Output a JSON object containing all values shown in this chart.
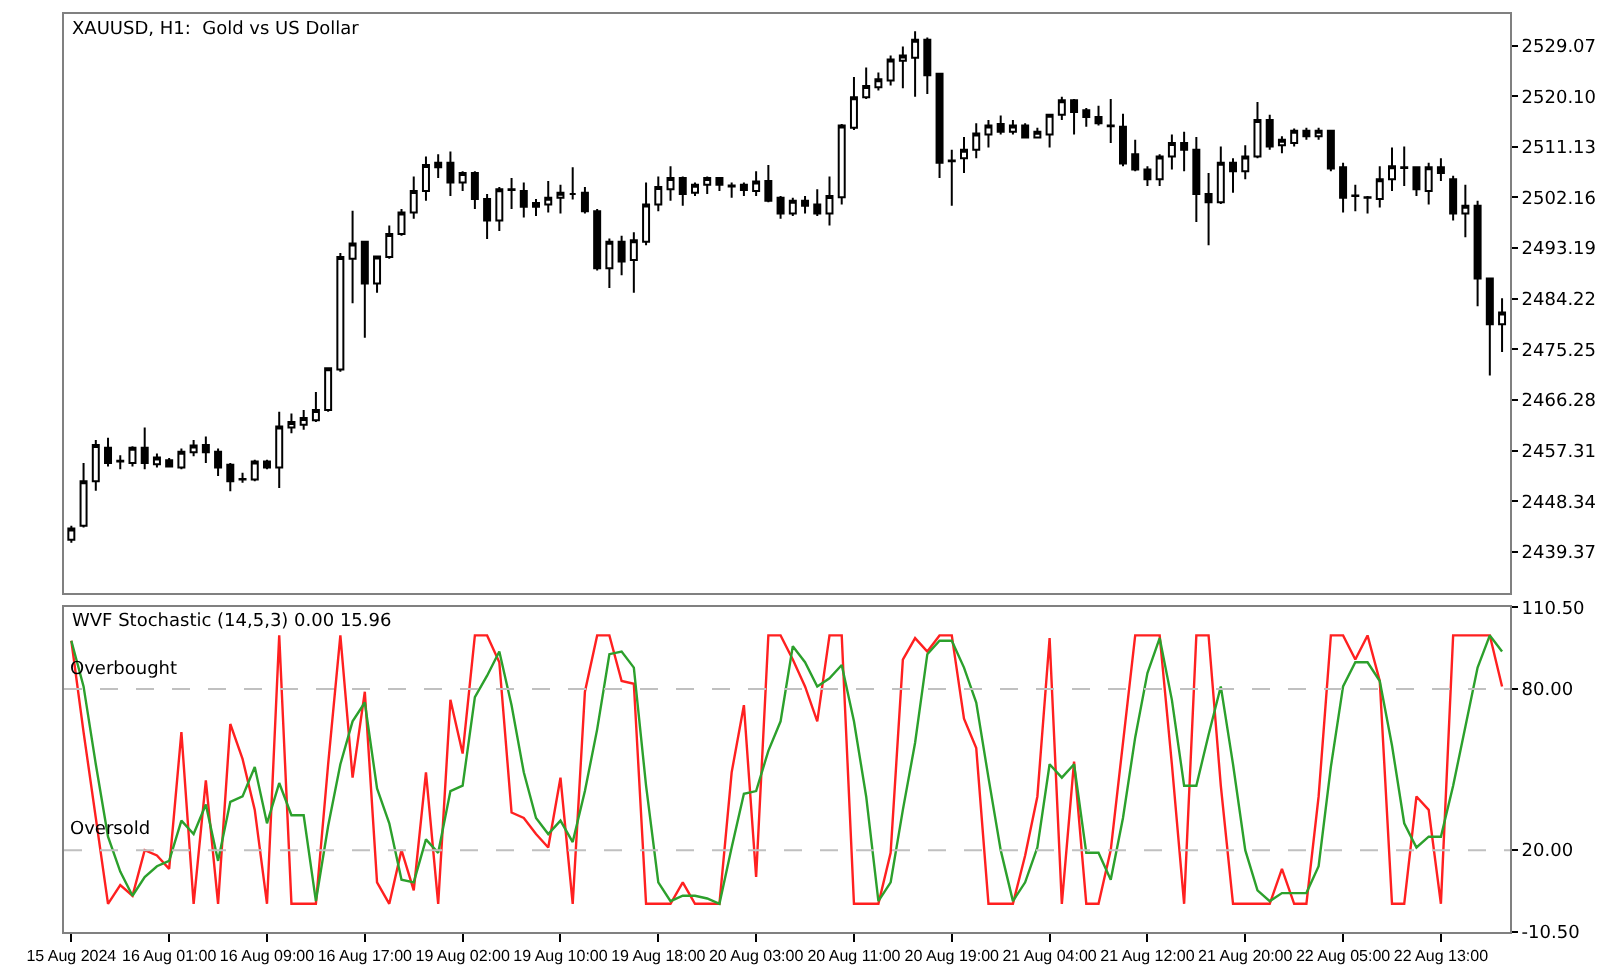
{
  "chart_data": [
    {
      "type": "candlestick",
      "title": "XAUUSD, H1:  Gold vs US Dollar",
      "ohlc": [
        [
          2441.5,
          2444.0,
          2441.0,
          2443.5
        ],
        [
          2444.0,
          2455.1,
          2443.7,
          2451.9
        ],
        [
          2451.9,
          2459.2,
          2450.2,
          2458.3
        ],
        [
          2457.8,
          2459.6,
          2454.5,
          2455.1
        ],
        [
          2455.4,
          2456.5,
          2454.0,
          2455.5
        ],
        [
          2455.1,
          2458.1,
          2454.5,
          2457.8
        ],
        [
          2457.8,
          2461.4,
          2454.0,
          2455.1
        ],
        [
          2454.9,
          2456.8,
          2454.3,
          2456.1
        ],
        [
          2455.6,
          2456.0,
          2454.3,
          2454.5
        ],
        [
          2454.3,
          2457.7,
          2454.0,
          2457.1
        ],
        [
          2457.0,
          2459.2,
          2456.3,
          2458.2
        ],
        [
          2458.3,
          2459.8,
          2455.1,
          2457.0
        ],
        [
          2457.1,
          2457.7,
          2452.8,
          2454.3
        ],
        [
          2454.8,
          2455.1,
          2450.1,
          2451.9
        ],
        [
          2452.2,
          2453.4,
          2451.6,
          2452.3
        ],
        [
          2452.2,
          2455.7,
          2451.9,
          2455.4
        ],
        [
          2455.4,
          2455.7,
          2454.0,
          2454.3
        ],
        [
          2454.3,
          2464.2,
          2450.7,
          2461.6
        ],
        [
          2461.4,
          2463.9,
          2460.4,
          2462.4
        ],
        [
          2461.9,
          2464.5,
          2461.0,
          2463.1
        ],
        [
          2462.7,
          2467.7,
          2462.4,
          2464.5
        ],
        [
          2464.5,
          2472.0,
          2464.2,
          2471.9
        ],
        [
          2471.7,
          2492.3,
          2471.3,
          2491.6
        ],
        [
          2491.3,
          2499.8,
          2483.4,
          2494.0
        ],
        [
          2494.3,
          2494.3,
          2477.3,
          2486.9
        ],
        [
          2486.9,
          2491.9,
          2485.3,
          2491.7
        ],
        [
          2491.6,
          2497.2,
          2491.3,
          2495.7
        ],
        [
          2495.7,
          2500.1,
          2495.4,
          2499.5
        ],
        [
          2499.5,
          2505.9,
          2498.4,
          2503.3
        ],
        [
          2503.3,
          2509.4,
          2501.6,
          2507.9
        ],
        [
          2508.3,
          2509.8,
          2505.6,
          2507.5
        ],
        [
          2508.3,
          2510.3,
          2502.4,
          2504.8
        ],
        [
          2504.8,
          2506.8,
          2503.3,
          2506.5
        ],
        [
          2506.5,
          2506.8,
          2500.1,
          2501.9
        ],
        [
          2501.9,
          2502.8,
          2494.8,
          2498.1
        ],
        [
          2498.1,
          2504.0,
          2496.2,
          2503.6
        ],
        [
          2503.5,
          2505.6,
          2500.1,
          2503.6
        ],
        [
          2503.3,
          2504.8,
          2498.6,
          2500.5
        ],
        [
          2500.5,
          2501.9,
          2498.9,
          2501.2
        ],
        [
          2500.9,
          2505.1,
          2499.5,
          2502.1
        ],
        [
          2502.1,
          2504.4,
          2499.3,
          2503.0
        ],
        [
          2502.8,
          2507.5,
          2501.8,
          2502.8
        ],
        [
          2503.0,
          2504.0,
          2499.3,
          2499.7
        ],
        [
          2499.7,
          2500.1,
          2489.2,
          2489.6
        ],
        [
          2489.6,
          2494.9,
          2486.1,
          2494.3
        ],
        [
          2494.3,
          2495.4,
          2488.4,
          2490.8
        ],
        [
          2491.1,
          2496.0,
          2485.3,
          2494.6
        ],
        [
          2494.3,
          2504.8,
          2493.7,
          2500.9
        ],
        [
          2500.9,
          2505.9,
          2499.7,
          2504.0
        ],
        [
          2503.6,
          2507.7,
          2501.6,
          2505.6
        ],
        [
          2505.6,
          2505.9,
          2500.7,
          2502.8
        ],
        [
          2503.0,
          2504.8,
          2502.4,
          2504.4
        ],
        [
          2504.4,
          2505.9,
          2502.8,
          2505.6
        ],
        [
          2505.6,
          2505.6,
          2503.3,
          2504.4
        ],
        [
          2504.3,
          2504.8,
          2502.1,
          2504.1
        ],
        [
          2504.4,
          2504.8,
          2502.4,
          2503.5
        ],
        [
          2503.3,
          2506.8,
          2502.4,
          2505.0
        ],
        [
          2505.1,
          2507.9,
          2501.3,
          2501.6
        ],
        [
          2502.1,
          2502.4,
          2498.4,
          2499.3
        ],
        [
          2499.3,
          2502.1,
          2498.9,
          2501.6
        ],
        [
          2501.6,
          2502.4,
          2499.3,
          2500.7
        ],
        [
          2500.9,
          2503.6,
          2498.9,
          2499.3
        ],
        [
          2499.3,
          2505.9,
          2497.2,
          2502.4
        ],
        [
          2502.2,
          2515.2,
          2500.9,
          2514.9
        ],
        [
          2514.5,
          2523.5,
          2514.1,
          2519.9
        ],
        [
          2519.9,
          2525.2,
          2519.6,
          2521.9
        ],
        [
          2521.7,
          2524.3,
          2521.1,
          2523.1
        ],
        [
          2522.9,
          2527.3,
          2522.0,
          2526.6
        ],
        [
          2526.4,
          2528.9,
          2521.5,
          2527.3
        ],
        [
          2526.9,
          2531.6,
          2520.0,
          2530.1
        ],
        [
          2530.1,
          2530.5,
          2520.5,
          2523.8
        ],
        [
          2524.1,
          2524.1,
          2505.6,
          2508.3
        ],
        [
          2508.6,
          2510.6,
          2500.7,
          2508.7
        ],
        [
          2509.1,
          2512.9,
          2506.5,
          2510.6
        ],
        [
          2510.6,
          2515.3,
          2509.1,
          2513.5
        ],
        [
          2513.3,
          2515.9,
          2511.0,
          2514.9
        ],
        [
          2515.2,
          2516.7,
          2513.3,
          2513.8
        ],
        [
          2513.8,
          2515.9,
          2513.3,
          2514.9
        ],
        [
          2514.9,
          2515.3,
          2512.6,
          2512.8
        ],
        [
          2512.8,
          2514.5,
          2512.6,
          2513.8
        ],
        [
          2513.3,
          2517.0,
          2511.0,
          2516.8
        ],
        [
          2516.8,
          2520.0,
          2515.9,
          2519.4
        ],
        [
          2519.4,
          2519.6,
          2513.3,
          2517.3
        ],
        [
          2517.6,
          2518.0,
          2514.7,
          2516.4
        ],
        [
          2516.4,
          2518.4,
          2514.9,
          2515.3
        ],
        [
          2514.9,
          2519.6,
          2511.8,
          2514.8
        ],
        [
          2514.7,
          2517.0,
          2507.7,
          2508.2
        ],
        [
          2509.8,
          2512.4,
          2506.8,
          2507.1
        ],
        [
          2507.1,
          2507.7,
          2504.2,
          2505.4
        ],
        [
          2505.4,
          2509.8,
          2504.2,
          2509.4
        ],
        [
          2509.4,
          2513.3,
          2507.1,
          2511.8
        ],
        [
          2511.8,
          2513.8,
          2506.8,
          2510.6
        ],
        [
          2510.6,
          2512.9,
          2497.8,
          2502.8
        ],
        [
          2502.8,
          2506.5,
          2493.7,
          2501.3
        ],
        [
          2501.3,
          2511.2,
          2501.0,
          2508.3
        ],
        [
          2508.3,
          2509.1,
          2503.0,
          2506.8
        ],
        [
          2506.8,
          2511.4,
          2505.4,
          2509.4
        ],
        [
          2509.4,
          2519.1,
          2509.1,
          2515.9
        ],
        [
          2515.9,
          2516.8,
          2510.6,
          2511.2
        ],
        [
          2511.4,
          2513.0,
          2510.0,
          2512.4
        ],
        [
          2511.8,
          2514.4,
          2511.2,
          2514.0
        ],
        [
          2514.0,
          2514.5,
          2512.4,
          2513.0
        ],
        [
          2513.0,
          2514.5,
          2512.4,
          2514.0
        ],
        [
          2514.0,
          2514.1,
          2506.8,
          2507.3
        ],
        [
          2507.5,
          2508.3,
          2499.5,
          2502.1
        ],
        [
          2502.4,
          2504.4,
          2499.7,
          2502.5
        ],
        [
          2502.2,
          2502.4,
          2499.3,
          2502.1
        ],
        [
          2501.9,
          2507.7,
          2500.4,
          2505.4
        ],
        [
          2505.4,
          2511.0,
          2503.3,
          2507.7
        ],
        [
          2507.5,
          2511.2,
          2504.2,
          2507.4
        ],
        [
          2507.5,
          2507.7,
          2502.4,
          2503.6
        ],
        [
          2503.3,
          2508.3,
          2500.9,
          2507.5
        ],
        [
          2507.5,
          2509.1,
          2505.1,
          2506.5
        ],
        [
          2505.4,
          2506.0,
          2498.1,
          2499.3
        ],
        [
          2499.3,
          2504.4,
          2495.1,
          2500.7
        ],
        [
          2500.7,
          2501.6,
          2482.9,
          2487.8
        ],
        [
          2487.8,
          2487.8,
          2470.6,
          2479.7
        ],
        [
          2479.7,
          2484.3,
          2474.8,
          2481.8
        ]
      ],
      "ylim": [
        2432.0,
        2534.7
      ],
      "yticks": [
        {
          "value": 2529.07,
          "label": "2529.07"
        },
        {
          "value": 2520.1,
          "label": "2520.10"
        },
        {
          "value": 2511.13,
          "label": "2511.13"
        },
        {
          "value": 2502.16,
          "label": "2502.16"
        },
        {
          "value": 2493.19,
          "label": "2493.19"
        },
        {
          "value": 2484.22,
          "label": "2484.22"
        },
        {
          "value": 2475.25,
          "label": "2475.25"
        },
        {
          "value": 2466.28,
          "label": "2466.28"
        },
        {
          "value": 2457.31,
          "label": "2457.31"
        },
        {
          "value": 2448.34,
          "label": "2448.34"
        },
        {
          "value": 2439.37,
          "label": "2439.37"
        }
      ],
      "tick_labels": "y"
    },
    {
      "type": "line",
      "title": "WVF Stochastic (14,5,3) 0.00 15.96",
      "categories": [
        "15 Aug 2024",
        null,
        null,
        null,
        null,
        null,
        null,
        null,
        "16 Aug 01:00",
        null,
        null,
        null,
        null,
        null,
        null,
        null,
        "16 Aug 09:00",
        null,
        null,
        null,
        null,
        null,
        null,
        null,
        "16 Aug 17:00",
        null,
        null,
        null,
        null,
        null,
        null,
        null,
        "19 Aug 02:00",
        null,
        null,
        null,
        null,
        null,
        null,
        null,
        "19 Aug 10:00",
        null,
        null,
        null,
        null,
        null,
        null,
        null,
        "19 Aug 18:00",
        null,
        null,
        null,
        null,
        null,
        null,
        null,
        "20 Aug 03:00",
        null,
        null,
        null,
        null,
        null,
        null,
        null,
        "20 Aug 11:00",
        null,
        null,
        null,
        null,
        null,
        null,
        null,
        "20 Aug 19:00",
        null,
        null,
        null,
        null,
        null,
        null,
        null,
        "21 Aug 04:00",
        null,
        null,
        null,
        null,
        null,
        null,
        null,
        "21 Aug 12:00",
        null,
        null,
        null,
        null,
        null,
        null,
        null,
        "21 Aug 20:00",
        null,
        null,
        null,
        null,
        null,
        null,
        null,
        "22 Aug 05:00",
        null,
        null,
        null,
        null,
        null,
        null,
        null,
        "22 Aug 13:00",
        null,
        null,
        null,
        null,
        null
      ],
      "series": [
        {
          "color": "#ff2020",
          "values": [
            98,
            64,
            32,
            0,
            7,
            3,
            20,
            18,
            13,
            64,
            0,
            46,
            0,
            67,
            54,
            35,
            0,
            100,
            0,
            0,
            0,
            52,
            100,
            47,
            79,
            8,
            0,
            20,
            5,
            49,
            0,
            76,
            56,
            100,
            100,
            90,
            34,
            32,
            26,
            21,
            47,
            0,
            79,
            100,
            100,
            83,
            82,
            0,
            0,
            0,
            8,
            0,
            0,
            0,
            49,
            74,
            10,
            100,
            100,
            91,
            81,
            68,
            100,
            100,
            0,
            0,
            0,
            19,
            91,
            99,
            94,
            100,
            100,
            69,
            58,
            0,
            0,
            0,
            18,
            40,
            99,
            0,
            53,
            0,
            0,
            20,
            60,
            100,
            100,
            100,
            52,
            0,
            100,
            100,
            44,
            0,
            0,
            0,
            0,
            13,
            0,
            0,
            40,
            100,
            100,
            91,
            100,
            83,
            0,
            0,
            40,
            35,
            0,
            100,
            100,
            100,
            100,
            81
          ]
        },
        {
          "color": "#2ca02c",
          "values": [
            98,
            81,
            52,
            25,
            12,
            3,
            10,
            14,
            16,
            31,
            26,
            37,
            16,
            38,
            40,
            51,
            30,
            45,
            33,
            33,
            1,
            29,
            52,
            68,
            75,
            43,
            30,
            9,
            8,
            24,
            19,
            42,
            44,
            77,
            85,
            94,
            74,
            49,
            32,
            26,
            31,
            23,
            42,
            65,
            93,
            94,
            88,
            44,
            8,
            1,
            3,
            3,
            2,
            0,
            21,
            41,
            42,
            57,
            68,
            96,
            90,
            81,
            84,
            89,
            68,
            40,
            1,
            8,
            35,
            60,
            93,
            98,
            98,
            88,
            75,
            47,
            20,
            1,
            8,
            21,
            52,
            47,
            52,
            19,
            19,
            9,
            32,
            62,
            86,
            99,
            76,
            44,
            44,
            63,
            81,
            52,
            20,
            5,
            1,
            4,
            4,
            4,
            14,
            51,
            81,
            90,
            90,
            83,
            59,
            30,
            21,
            25,
            25,
            44,
            66,
            88,
            100,
            94
          ]
        }
      ],
      "ylim": [
        -10.5,
        110.5
      ],
      "yticks": [
        {
          "value": 110.5,
          "label": "110.50"
        },
        {
          "value": 80,
          "label": "80.00"
        },
        {
          "value": 20,
          "label": "20.00"
        },
        {
          "value": -10.5,
          "label": "-10.50"
        }
      ],
      "ref_lines": [
        {
          "axis": "y",
          "value": 80,
          "label": "Overbought",
          "color": "#c0c0c0",
          "line_style": "dashed"
        },
        {
          "axis": "y",
          "value": 20,
          "label": "Oversold",
          "color": "#c0c0c0",
          "line_style": "dashed"
        }
      ]
    }
  ]
}
